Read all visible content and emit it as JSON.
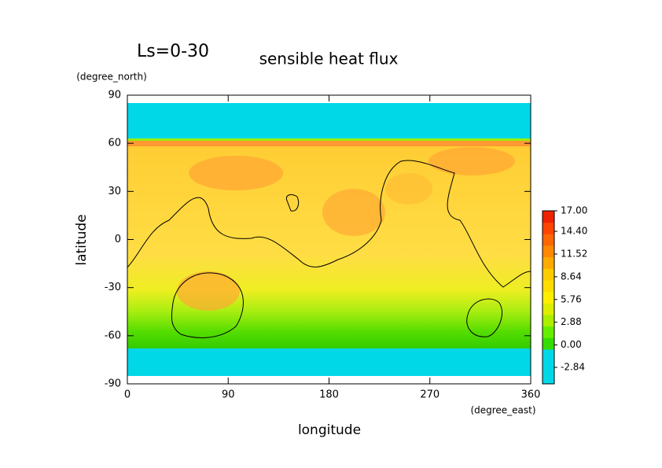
{
  "chart_data": {
    "type": "contour",
    "title": "sensible heat flux",
    "subtitle": "Ls=0-30",
    "x_label": "longitude",
    "y_label": "latitude",
    "x_units": "(degree_east)",
    "y_units": "(degree_north)",
    "xlim": [
      0,
      360
    ],
    "ylim": [
      -90,
      90
    ],
    "xticks": [
      0,
      90,
      180,
      270,
      360
    ],
    "yticks": [
      90,
      60,
      30,
      0,
      -30,
      -60,
      -90
    ],
    "clim": [
      -4.93,
      17
    ],
    "colorbar_ticks": [
      {
        "value": 17,
        "label": "17.00"
      },
      {
        "value": 14.4,
        "label": "14.40"
      },
      {
        "value": 11.52,
        "label": "11.52"
      },
      {
        "value": 8.64,
        "label": "8.64"
      },
      {
        "value": 5.76,
        "label": "5.76"
      },
      {
        "value": 2.88,
        "label": "2.88"
      },
      {
        "value": 0,
        "label": "0.00"
      },
      {
        "value": -2.84,
        "label": "-2.84"
      }
    ],
    "colorbar_colors": [
      "#00d8e8",
      "#00d8e8",
      "#00d8e8",
      "#33dd00",
      "#66ee00",
      "#aaee00",
      "#ddee00",
      "#ffee00",
      "#ffdd00",
      "#ffcc00",
      "#ffaa00",
      "#ff8800",
      "#ff6600",
      "#ff4400",
      "#ee2200"
    ]
  }
}
